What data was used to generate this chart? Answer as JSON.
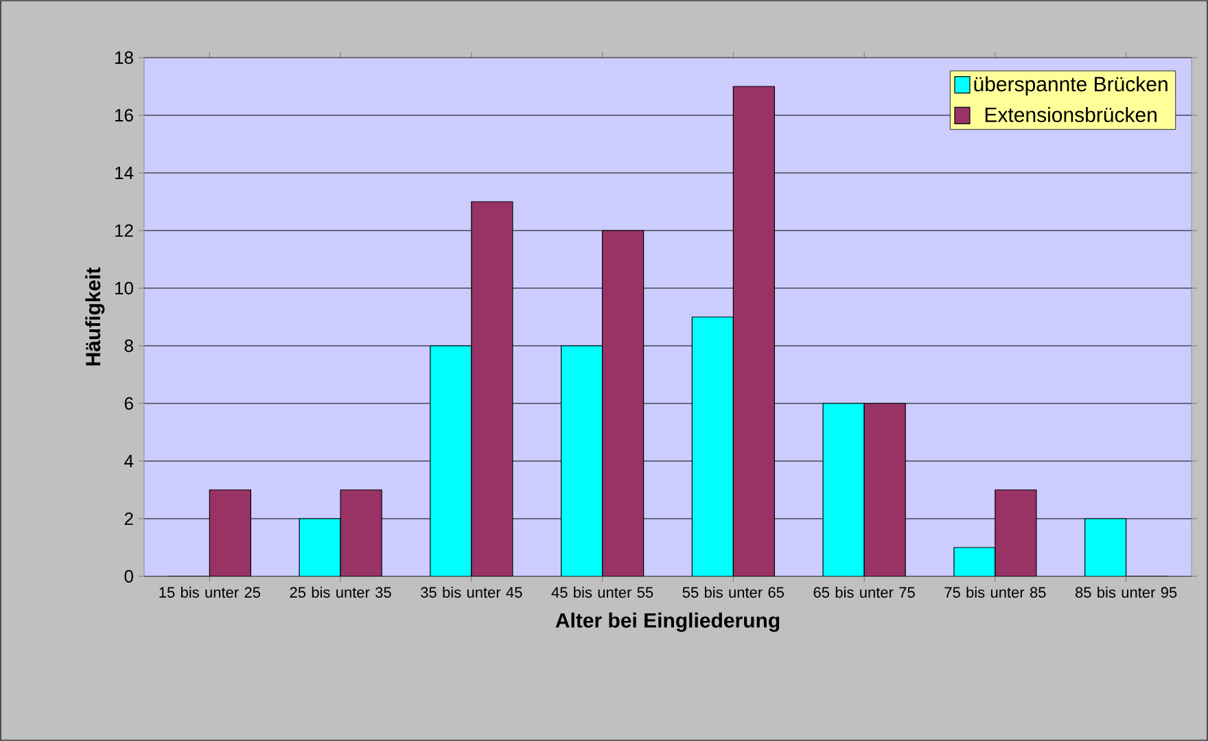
{
  "chart_data": {
    "type": "bar",
    "xlabel": "Alter bei Eingliederung",
    "ylabel": "Häufigkeit",
    "categories": [
      "15 bis unter 25",
      "25 bis unter 35",
      "35 bis unter 45",
      "45 bis unter 55",
      "55 bis unter 65",
      "65 bis unter 75",
      "75 bis unter 85",
      "85 bis unter 95"
    ],
    "series": [
      {
        "name": "überspannte Brücken",
        "color": "#00ffff",
        "values": [
          0,
          2,
          8,
          8,
          9,
          6,
          1,
          2
        ]
      },
      {
        "name": "Extensionsbrücken",
        "color": "#993366",
        "values": [
          3,
          3,
          13,
          12,
          17,
          6,
          3,
          0
        ]
      }
    ],
    "ylim": [
      0,
      18
    ],
    "yticks": [
      0,
      2,
      4,
      6,
      8,
      10,
      12,
      14,
      16,
      18
    ],
    "grid": "y",
    "legend": "top right"
  }
}
